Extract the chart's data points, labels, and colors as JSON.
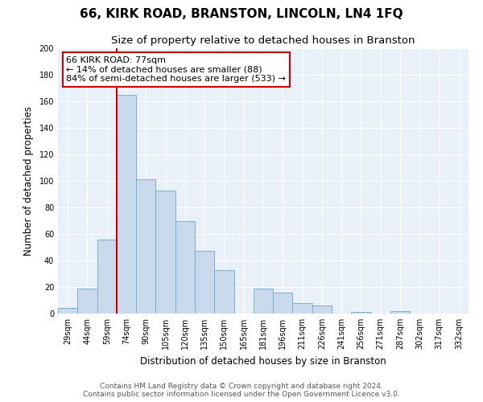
{
  "title": "66, KIRK ROAD, BRANSTON, LINCOLN, LN4 1FQ",
  "subtitle": "Size of property relative to detached houses in Branston",
  "xlabel": "Distribution of detached houses by size in Branston",
  "ylabel": "Number of detached properties",
  "bar_labels": [
    "29sqm",
    "44sqm",
    "59sqm",
    "74sqm",
    "90sqm",
    "105sqm",
    "120sqm",
    "135sqm",
    "150sqm",
    "165sqm",
    "181sqm",
    "196sqm",
    "211sqm",
    "226sqm",
    "241sqm",
    "256sqm",
    "271sqm",
    "287sqm",
    "302sqm",
    "317sqm",
    "332sqm"
  ],
  "bar_values": [
    4,
    19,
    56,
    165,
    101,
    93,
    70,
    47,
    33,
    0,
    19,
    16,
    8,
    6,
    0,
    1,
    0,
    2,
    0,
    0,
    0
  ],
  "bar_color": "#c8daec",
  "bar_edge_color": "#7aaed0",
  "vline_color": "#cc0000",
  "vline_index": 3,
  "annotation_text_line1": "66 KIRK ROAD: 77sqm",
  "annotation_text_line2": "← 14% of detached houses are smaller (88)",
  "annotation_text_line3": "84% of semi-detached houses are larger (533) →",
  "ylim": [
    0,
    200
  ],
  "yticks": [
    0,
    20,
    40,
    60,
    80,
    100,
    120,
    140,
    160,
    180,
    200
  ],
  "footer_line1": "Contains HM Land Registry data © Crown copyright and database right 2024.",
  "footer_line2": "Contains public sector information licensed under the Open Government Licence v3.0.",
  "title_fontsize": 11,
  "subtitle_fontsize": 9.5,
  "ylabel_fontsize": 8.5,
  "xlabel_fontsize": 8.5,
  "tick_fontsize": 7,
  "annotation_fontsize": 8,
  "footer_fontsize": 6.5,
  "bg_color": "#eaf0f8"
}
